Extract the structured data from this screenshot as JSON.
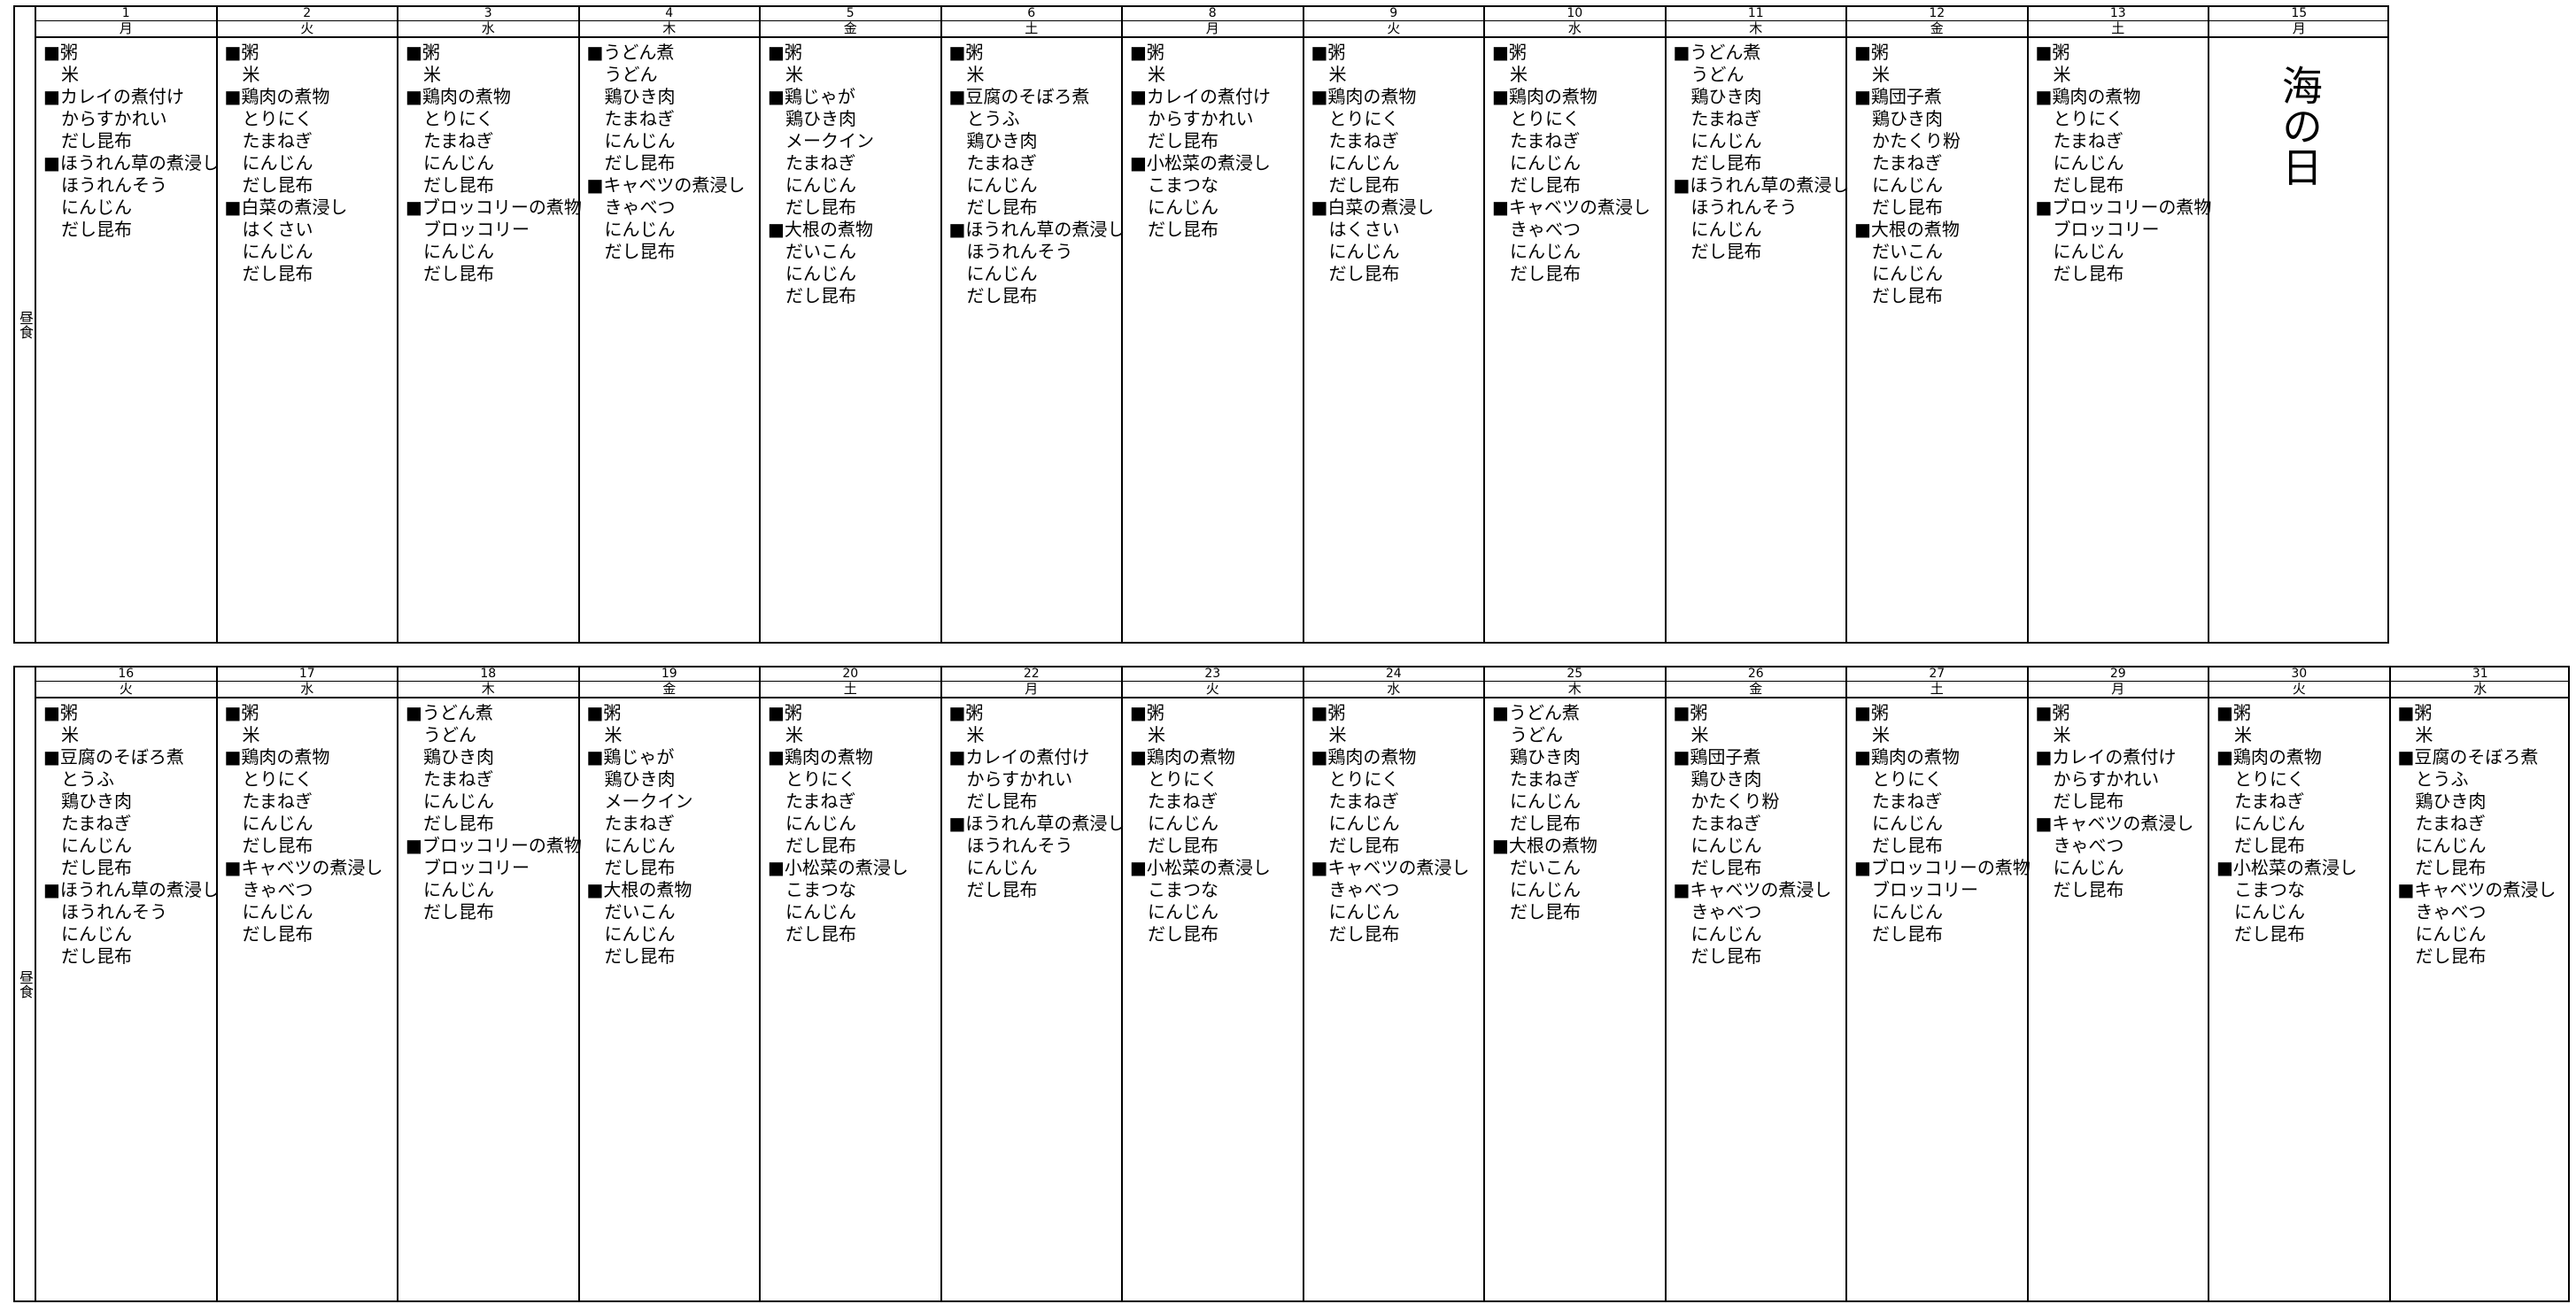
{
  "weeks": [
    {
      "row_label": "昼食",
      "days": [
        {
          "date": 1,
          "weekday": "月",
          "menu": [
            "■粥",
            "米",
            "■カレイの煮付け",
            "からすかれい",
            "だし昆布",
            "■ほうれん草の煮浸し",
            "ほうれんそう",
            "にんじん",
            "だし昆布"
          ]
        },
        {
          "date": 2,
          "weekday": "火",
          "menu": [
            "■粥",
            "米",
            "■鶏肉の煮物",
            "とりにく",
            "たまねぎ",
            "にんじん",
            "だし昆布",
            "■白菜の煮浸し",
            "はくさい",
            "にんじん",
            "だし昆布"
          ]
        },
        {
          "date": 3,
          "weekday": "水",
          "menu": [
            "■粥",
            "米",
            "■鶏肉の煮物",
            "とりにく",
            "たまねぎ",
            "にんじん",
            "だし昆布",
            "■ブロッコリーの煮物",
            "ブロッコリー",
            "にんじん",
            "だし昆布"
          ]
        },
        {
          "date": 4,
          "weekday": "木",
          "menu": [
            "■うどん煮",
            "うどん",
            "鶏ひき肉",
            "たまねぎ",
            "にんじん",
            "だし昆布",
            "■キャベツの煮浸し",
            "きゃべつ",
            "にんじん",
            "だし昆布"
          ]
        },
        {
          "date": 5,
          "weekday": "金",
          "menu": [
            "■粥",
            "米",
            "■鶏じゃが",
            "鶏ひき肉",
            "メークイン",
            "たまねぎ",
            "にんじん",
            "だし昆布",
            "■大根の煮物",
            "だいこん",
            "にんじん",
            "だし昆布"
          ]
        },
        {
          "date": 6,
          "weekday": "土",
          "menu": [
            "■粥",
            "米",
            "■豆腐のそぼろ煮",
            "とうふ",
            "鶏ひき肉",
            "たまねぎ",
            "にんじん",
            "だし昆布",
            "■ほうれん草の煮浸し",
            "ほうれんそう",
            "にんじん",
            "だし昆布"
          ]
        },
        {
          "date": 8,
          "weekday": "月",
          "menu": [
            "■粥",
            "米",
            "■カレイの煮付け",
            "からすかれい",
            "だし昆布",
            "■小松菜の煮浸し",
            "こまつな",
            "にんじん",
            "だし昆布"
          ]
        },
        {
          "date": 9,
          "weekday": "火",
          "menu": [
            "■粥",
            "米",
            "■鶏肉の煮物",
            "とりにく",
            "たまねぎ",
            "にんじん",
            "だし昆布",
            "■白菜の煮浸し",
            "はくさい",
            "にんじん",
            "だし昆布"
          ]
        },
        {
          "date": 10,
          "weekday": "水",
          "menu": [
            "■粥",
            "米",
            "■鶏肉の煮物",
            "とりにく",
            "たまねぎ",
            "にんじん",
            "だし昆布",
            "■キャベツの煮浸し",
            "きゃべつ",
            "にんじん",
            "だし昆布"
          ]
        },
        {
          "date": 11,
          "weekday": "木",
          "menu": [
            "■うどん煮",
            "うどん",
            "鶏ひき肉",
            "たまねぎ",
            "にんじん",
            "だし昆布",
            "■ほうれん草の煮浸し",
            "ほうれんそう",
            "にんじん",
            "だし昆布"
          ]
        },
        {
          "date": 12,
          "weekday": "金",
          "menu": [
            "■粥",
            "米",
            "■鶏団子煮",
            "鶏ひき肉",
            "かたくり粉",
            "たまねぎ",
            "にんじん",
            "だし昆布",
            "■大根の煮物",
            "だいこん",
            "にんじん",
            "だし昆布"
          ]
        },
        {
          "date": 13,
          "weekday": "土",
          "menu": [
            "■粥",
            "米",
            "■鶏肉の煮物",
            "とりにく",
            "たまねぎ",
            "にんじん",
            "だし昆布",
            "■ブロッコリーの煮物",
            "ブロッコリー",
            "にんじん",
            "だし昆布"
          ]
        },
        {
          "date": 15,
          "weekday": "月",
          "holiday": "海の日"
        }
      ]
    },
    {
      "row_label": "昼食",
      "days": [
        {
          "date": 16,
          "weekday": "火",
          "menu": [
            "■粥",
            "米",
            "■豆腐のそぼろ煮",
            "とうふ",
            "鶏ひき肉",
            "たまねぎ",
            "にんじん",
            "だし昆布",
            "■ほうれん草の煮浸し",
            "ほうれんそう",
            "にんじん",
            "だし昆布"
          ]
        },
        {
          "date": 17,
          "weekday": "水",
          "menu": [
            "■粥",
            "米",
            "■鶏肉の煮物",
            "とりにく",
            "たまねぎ",
            "にんじん",
            "だし昆布",
            "■キャベツの煮浸し",
            "きゃべつ",
            "にんじん",
            "だし昆布"
          ]
        },
        {
          "date": 18,
          "weekday": "木",
          "menu": [
            "■うどん煮",
            "うどん",
            "鶏ひき肉",
            "たまねぎ",
            "にんじん",
            "だし昆布",
            "■ブロッコリーの煮物",
            "ブロッコリー",
            "にんじん",
            "だし昆布"
          ]
        },
        {
          "date": 19,
          "weekday": "金",
          "menu": [
            "■粥",
            "米",
            "■鶏じゃが",
            "鶏ひき肉",
            "メークイン",
            "たまねぎ",
            "にんじん",
            "だし昆布",
            "■大根の煮物",
            "だいこん",
            "にんじん",
            "だし昆布"
          ]
        },
        {
          "date": 20,
          "weekday": "土",
          "menu": [
            "■粥",
            "米",
            "■鶏肉の煮物",
            "とりにく",
            "たまねぎ",
            "にんじん",
            "だし昆布",
            "■小松菜の煮浸し",
            "こまつな",
            "にんじん",
            "だし昆布"
          ]
        },
        {
          "date": 22,
          "weekday": "月",
          "menu": [
            "■粥",
            "米",
            "■カレイの煮付け",
            "からすかれい",
            "だし昆布",
            "■ほうれん草の煮浸し",
            "ほうれんそう",
            "にんじん",
            "だし昆布"
          ]
        },
        {
          "date": 23,
          "weekday": "火",
          "menu": [
            "■粥",
            "米",
            "■鶏肉の煮物",
            "とりにく",
            "たまねぎ",
            "にんじん",
            "だし昆布",
            "■小松菜の煮浸し",
            "こまつな",
            "にんじん",
            "だし昆布"
          ]
        },
        {
          "date": 24,
          "weekday": "水",
          "menu": [
            "■粥",
            "米",
            "■鶏肉の煮物",
            "とりにく",
            "たまねぎ",
            "にんじん",
            "だし昆布",
            "■キャベツの煮浸し",
            "きゃべつ",
            "にんじん",
            "だし昆布"
          ]
        },
        {
          "date": 25,
          "weekday": "木",
          "menu": [
            "■うどん煮",
            "うどん",
            "鶏ひき肉",
            "たまねぎ",
            "にんじん",
            "だし昆布",
            "■大根の煮物",
            "だいこん",
            "にんじん",
            "だし昆布"
          ]
        },
        {
          "date": 26,
          "weekday": "金",
          "menu": [
            "■粥",
            "米",
            "■鶏団子煮",
            "鶏ひき肉",
            "かたくり粉",
            "たまねぎ",
            "にんじん",
            "だし昆布",
            "■キャベツの煮浸し",
            "きゃべつ",
            "にんじん",
            "だし昆布"
          ]
        },
        {
          "date": 27,
          "weekday": "土",
          "menu": [
            "■粥",
            "米",
            "■鶏肉の煮物",
            "とりにく",
            "たまねぎ",
            "にんじん",
            "だし昆布",
            "■ブロッコリーの煮物",
            "ブロッコリー",
            "にんじん",
            "だし昆布"
          ]
        },
        {
          "date": 29,
          "weekday": "月",
          "menu": [
            "■粥",
            "米",
            "■カレイの煮付け",
            "からすかれい",
            "だし昆布",
            "■キャベツの煮浸し",
            "きゃべつ",
            "にんじん",
            "だし昆布"
          ]
        },
        {
          "date": 30,
          "weekday": "火",
          "menu": [
            "■粥",
            "米",
            "■鶏肉の煮物",
            "とりにく",
            "たまねぎ",
            "にんじん",
            "だし昆布",
            "■小松菜の煮浸し",
            "こまつな",
            "にんじん",
            "だし昆布"
          ]
        },
        {
          "date": 31,
          "weekday": "水",
          "menu": [
            "■粥",
            "米",
            "■豆腐のそぼろ煮",
            "とうふ",
            "鶏ひき肉",
            "たまねぎ",
            "にんじん",
            "だし昆布",
            "■キャベツの煮浸し",
            "きゃべつ",
            "にんじん",
            "だし昆布"
          ]
        }
      ]
    }
  ]
}
